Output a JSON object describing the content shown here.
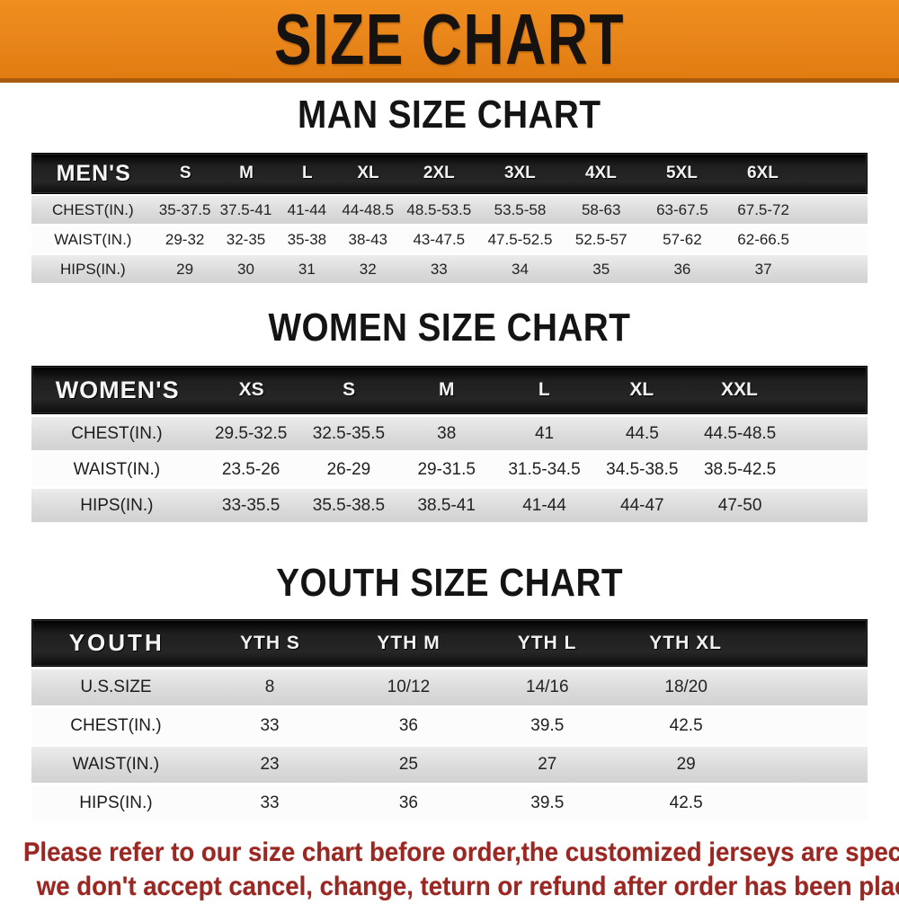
{
  "banner": {
    "title": "SIZE CHART",
    "bg_color": "#E8851A",
    "border_color": "#A95C0E",
    "text_color": "#151210"
  },
  "chart_data": [
    {
      "type": "table",
      "title": "MAN SIZE CHART",
      "header_label": "MEN'S",
      "size_columns": [
        "S",
        "M",
        "L",
        "XL",
        "2XL",
        "3XL",
        "4XL",
        "5XL",
        "6XL"
      ],
      "rows": [
        {
          "label": "CHEST(IN.)",
          "values": [
            "35-37.5",
            "37.5-41",
            "41-44",
            "44-48.5",
            "48.5-53.5",
            "53.5-58",
            "58-63",
            "63-67.5",
            "67.5-72"
          ]
        },
        {
          "label": "WAIST(IN.)",
          "values": [
            "29-32",
            "32-35",
            "35-38",
            "38-43",
            "43-47.5",
            "47.5-52.5",
            "52.5-57",
            "57-62",
            "62-66.5"
          ]
        },
        {
          "label": "HIPS(IN.)",
          "values": [
            "29",
            "30",
            "31",
            "32",
            "33",
            "34",
            "35",
            "36",
            "37"
          ]
        }
      ]
    },
    {
      "type": "table",
      "title": "WOMEN SIZE CHART",
      "header_label": "WOMEN'S",
      "size_columns": [
        "XS",
        "S",
        "M",
        "L",
        "XL",
        "XXL"
      ],
      "rows": [
        {
          "label": "CHEST(IN.)",
          "values": [
            "29.5-32.5",
            "32.5-35.5",
            "38",
            "41",
            "44.5",
            "44.5-48.5"
          ]
        },
        {
          "label": "WAIST(IN.)",
          "values": [
            "23.5-26",
            "26-29",
            "29-31.5",
            "31.5-34.5",
            "34.5-38.5",
            "38.5-42.5"
          ]
        },
        {
          "label": "HIPS(IN.)",
          "values": [
            "33-35.5",
            "35.5-38.5",
            "38.5-41",
            "41-44",
            "44-47",
            "47-50"
          ]
        }
      ]
    },
    {
      "type": "table",
      "title": "YOUTH SIZE CHART",
      "header_label": "YOUTH",
      "size_columns": [
        "YTH S",
        "YTH M",
        "YTH L",
        "YTH XL"
      ],
      "rows": [
        {
          "label": "U.S.SIZE",
          "values": [
            "8",
            "10/12",
            "14/16",
            "18/20"
          ]
        },
        {
          "label": "CHEST(IN.)",
          "values": [
            "33",
            "36",
            "39.5",
            "42.5"
          ]
        },
        {
          "label": "WAIST(IN.)",
          "values": [
            "23",
            "25",
            "27",
            "29"
          ]
        },
        {
          "label": "HIPS(IN.)",
          "values": [
            "33",
            "36",
            "39.5",
            "42.5"
          ]
        }
      ]
    }
  ],
  "disclaimer": {
    "line1": "Please refer to our size chart before order,the customized jerseys are special products,",
    "line2": "we don't accept cancel, change, teturn or refund after order has been placed!",
    "color": "#9B2722"
  }
}
